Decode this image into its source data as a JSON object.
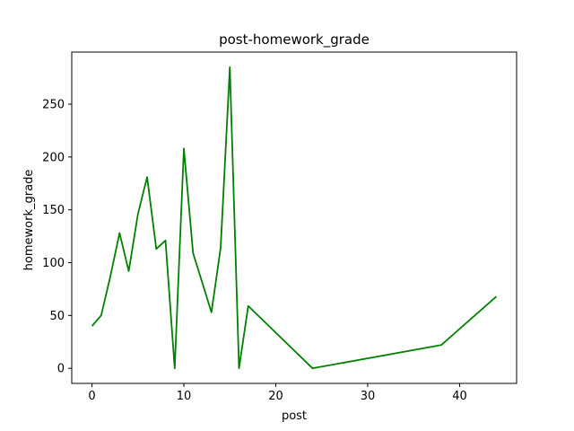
{
  "chart_data": {
    "type": "line",
    "title": "post-homework_grade",
    "xlabel": "post",
    "ylabel": "homework_grade",
    "xlim": [
      -2.2,
      46.2
    ],
    "ylim": [
      -14.3,
      299.3
    ],
    "xticks": [
      0,
      10,
      20,
      30,
      40
    ],
    "yticks": [
      0,
      50,
      100,
      150,
      200,
      250
    ],
    "grid": false,
    "series": [
      {
        "color": "#008000",
        "x": [
          0,
          1,
          2,
          3,
          4,
          5,
          6,
          7,
          8,
          9,
          10,
          11,
          13,
          14,
          15,
          16,
          17,
          24,
          38,
          44
        ],
        "y": [
          40,
          50,
          87,
          128,
          92,
          146,
          181,
          113,
          121,
          0,
          208,
          109,
          53,
          114,
          285,
          0,
          59,
          0,
          22,
          68
        ]
      }
    ]
  }
}
